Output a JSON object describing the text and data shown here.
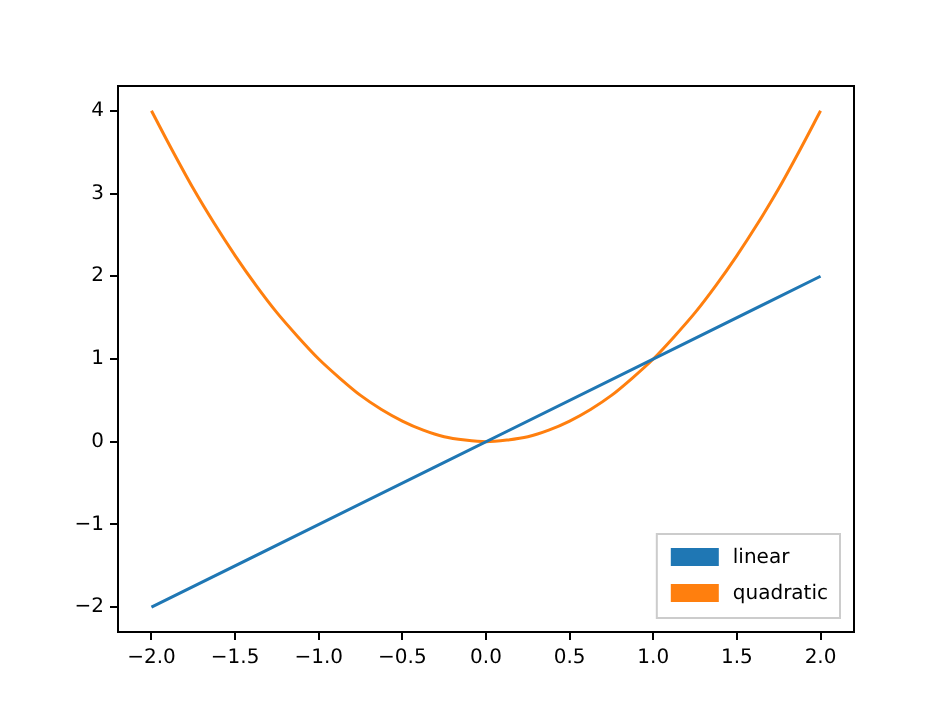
{
  "chart_data": {
    "type": "line",
    "legend": "bottom right",
    "grid": false,
    "marker": "none",
    "line_style": "solid",
    "xlim": [
      -2.2,
      2.2
    ],
    "ylim": [
      -2.3,
      4.3
    ],
    "xticks": [
      {
        "value": -2,
        "label": "−2.0"
      },
      {
        "value": -1.5,
        "label": "−1.5"
      },
      {
        "value": -1,
        "label": "−1.0"
      },
      {
        "value": -0.5,
        "label": "−0.5"
      },
      {
        "value": 0,
        "label": "0.0"
      },
      {
        "value": 0.5,
        "label": "0.5"
      },
      {
        "value": 1,
        "label": "1.0"
      },
      {
        "value": 1.5,
        "label": "1.5"
      },
      {
        "value": 2,
        "label": "2.0"
      }
    ],
    "yticks": [
      {
        "value": -2,
        "label": "−2"
      },
      {
        "value": -1,
        "label": "−1"
      },
      0,
      1,
      2,
      3,
      4
    ],
    "series": [
      {
        "name": "linear",
        "color": "#1f77b4",
        "x": [
          -2,
          2
        ],
        "values": [
          -2,
          2
        ]
      },
      {
        "name": "quadratic",
        "color": "#ff7f0e",
        "x": [
          -2,
          -1.875,
          -1.75,
          -1.625,
          -1.5,
          -1.375,
          -1.25,
          -1.125,
          -1,
          -0.875,
          -0.75,
          -0.625,
          -0.5,
          -0.375,
          -0.25,
          -0.125,
          0,
          0.125,
          0.25,
          0.375,
          0.5,
          0.625,
          0.75,
          0.875,
          1,
          1.125,
          1.25,
          1.375,
          1.5,
          1.625,
          1.75,
          1.875,
          2
        ],
        "values": [
          4,
          3.52,
          3.06,
          2.64,
          2.25,
          1.89,
          1.56,
          1.27,
          1,
          0.77,
          0.56,
          0.39,
          0.25,
          0.14,
          0.06,
          0.02,
          0,
          0.02,
          0.06,
          0.14,
          0.25,
          0.39,
          0.56,
          0.77,
          1,
          1.27,
          1.56,
          1.89,
          2.25,
          2.64,
          3.06,
          3.52,
          4
        ]
      }
    ]
  }
}
